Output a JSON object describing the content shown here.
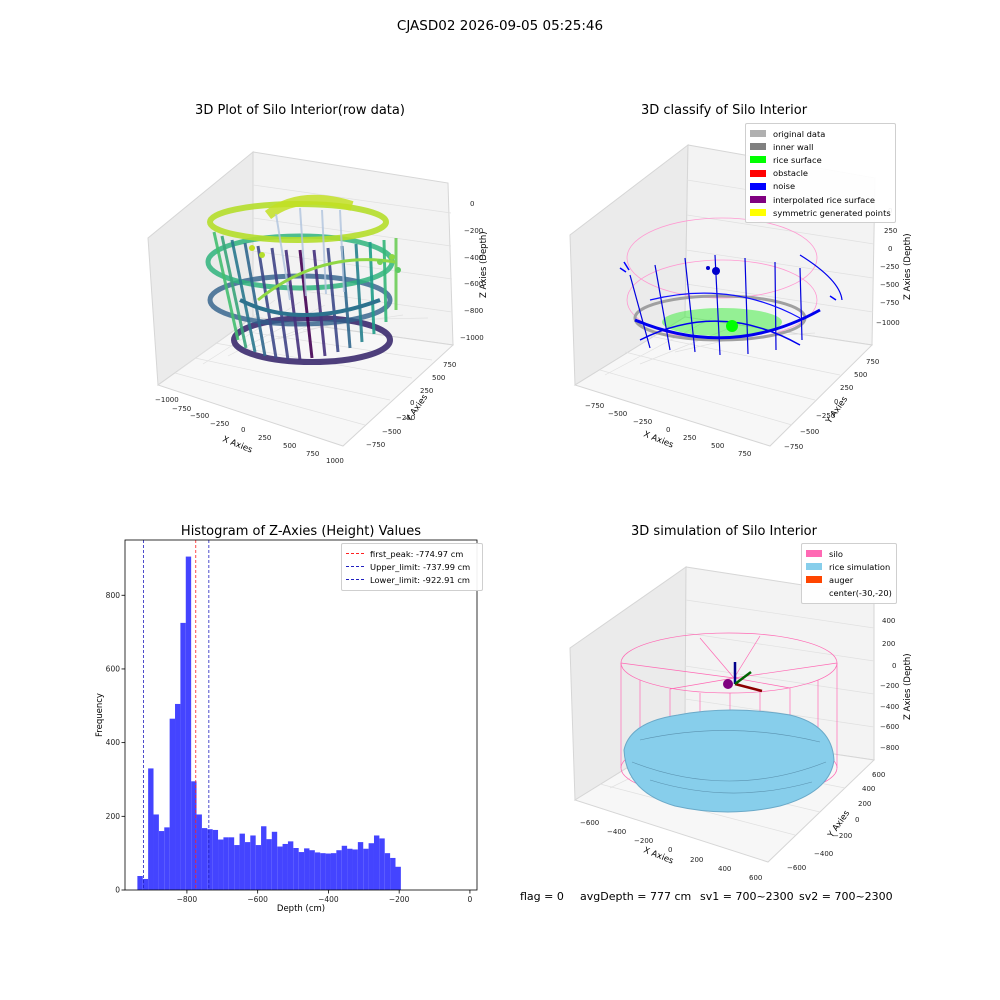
{
  "suptitle": "CJASD02 2026-09-05 05:25:46",
  "colors": {
    "viridis_low": "#440154",
    "viridis_mid": "#21918c",
    "viridis_high": "#fde725",
    "histogram_bar": "#4444ff",
    "first_peak_line": "#ff2020",
    "limit_lines": "#2020c0",
    "silo": "#ff69b4",
    "rice_simulation": "#87ceeb",
    "auger": "#ff4500"
  },
  "raw_plot": {
    "title": "3D Plot of Silo Interior(row data)",
    "xlabel": "X Axies",
    "ylabel": "Y Axies",
    "zlabel": "Z Axies (Depth)",
    "x_ticks": [
      "−1000",
      "−750",
      "−500",
      "−250",
      "0",
      "250",
      "500",
      "750",
      "1000"
    ],
    "y_ticks": [
      "−750",
      "−500",
      "−250",
      "0",
      "250",
      "500",
      "750"
    ],
    "z_ticks": [
      "0",
      "−200",
      "−400",
      "−600",
      "−800",
      "−1000"
    ]
  },
  "classify_plot": {
    "title": "3D classify of Silo Interior",
    "xlabel": "X Axies",
    "ylabel": "Y Axies",
    "zlabel": "Z Axies (Depth)",
    "x_ticks": [
      "−750",
      "−500",
      "−250",
      "0",
      "250",
      "500",
      "750"
    ],
    "y_ticks": [
      "−750",
      "−500",
      "−250",
      "0",
      "250",
      "500",
      "750"
    ],
    "z_ticks": [
      "250",
      "0",
      "−250",
      "−500",
      "−750",
      "−1000"
    ],
    "z_tick_partial": "0",
    "legend": [
      {
        "label": "original data",
        "color": "#b0b0b0"
      },
      {
        "label": "inner wall",
        "color": "#808080"
      },
      {
        "label": "rice surface",
        "color": "#00ff00"
      },
      {
        "label": "obstacle",
        "color": "#ff0000"
      },
      {
        "label": "noise",
        "color": "#0000ff"
      },
      {
        "label": "interpolated rice surface",
        "color": "#800080"
      },
      {
        "label": "symmetric generated points",
        "color": "#ffff00"
      }
    ]
  },
  "histogram": {
    "title": "Histogram of Z-Axies (Height) Values",
    "xlabel": "Depth (cm)",
    "ylabel": "Frequency",
    "x_ticks": [
      "−800",
      "−600",
      "−400",
      "−200",
      "0"
    ],
    "y_ticks": [
      "0",
      "200",
      "400",
      "600",
      "800"
    ],
    "legend": [
      {
        "label": "first_peak: -774.97 cm",
        "color": "#ff2020"
      },
      {
        "label": "Upper_limit: -737.99 cm",
        "color": "#2020c0"
      },
      {
        "label": "Lower_limit: -922.91 cm",
        "color": "#2020c0"
      }
    ]
  },
  "sim_plot": {
    "title": "3D simulation of Silo Interior",
    "xlabel": "X Axies",
    "ylabel": "Y Axies",
    "zlabel": "Z Axies (Depth)",
    "x_ticks": [
      "−600",
      "−400",
      "−200",
      "0",
      "200",
      "400",
      "600"
    ],
    "y_ticks": [
      "−600",
      "−400",
      "−200",
      "0",
      "200",
      "400",
      "600"
    ],
    "z_ticks": [
      "400",
      "200",
      "0",
      "−200",
      "−400",
      "−600",
      "−800"
    ],
    "legend": [
      {
        "label": "silo",
        "color": "#ff69b4"
      },
      {
        "label": "rice simulation",
        "color": "#87ceeb"
      },
      {
        "label": "auger",
        "color": "#ff4500"
      },
      {
        "label": "center(-30,-20)",
        "color": ""
      }
    ]
  },
  "footer": {
    "flag": "flag = 0",
    "avg": "avgDepth = 777 cm",
    "sv1": "sv1 = 700~2300",
    "sv2": "sv2 = 700~2300"
  },
  "chart_data": [
    {
      "type": "scatter",
      "title": "3D Plot of Silo Interior(row data)",
      "xlabel": "X Axies",
      "ylabel": "Y Axies",
      "zlabel": "Z Axies (Depth)",
      "xlim": [
        -1000,
        1000
      ],
      "ylim": [
        -750,
        750
      ],
      "zlim": [
        -1000,
        0
      ],
      "colormap": "viridis"
    },
    {
      "type": "scatter",
      "title": "3D classify of Silo Interior",
      "xlabel": "X Axies",
      "ylabel": "Y Axies",
      "zlabel": "Z Axies (Depth)",
      "xlim": [
        -750,
        750
      ],
      "ylim": [
        -750,
        750
      ],
      "zlim": [
        -1000,
        250
      ],
      "series": [
        {
          "name": "original data"
        },
        {
          "name": "inner wall"
        },
        {
          "name": "rice surface"
        },
        {
          "name": "obstacle"
        },
        {
          "name": "noise"
        },
        {
          "name": "interpolated rice surface"
        },
        {
          "name": "symmetric generated points"
        }
      ],
      "legend": "top-right"
    },
    {
      "type": "bar",
      "title": "Histogram of Z-Axies (Height) Values",
      "xlabel": "Depth (cm)",
      "ylabel": "Frequency",
      "xlim": [
        -975,
        20
      ],
      "ylim": [
        0,
        950
      ],
      "bin_start": -940,
      "bin_width": 15.2,
      "values": [
        38,
        30,
        330,
        205,
        160,
        170,
        465,
        505,
        725,
        905,
        295,
        205,
        168,
        165,
        163,
        137,
        143,
        143,
        122,
        153,
        130,
        148,
        122,
        173,
        138,
        158,
        118,
        125,
        132,
        114,
        103,
        113,
        108,
        102,
        100,
        99,
        100,
        108,
        120,
        112,
        110,
        130,
        112,
        127,
        148,
        140,
        100,
        87,
        63
      ],
      "vlines": [
        {
          "name": "first_peak: -774.97 cm",
          "x": -774.97
        },
        {
          "name": "Upper_limit: -737.99 cm",
          "x": -737.99
        },
        {
          "name": "Lower_limit: -922.91 cm",
          "x": -922.91
        }
      ],
      "legend": "top-right",
      "grid": false
    },
    {
      "type": "area",
      "title": "3D simulation of Silo Interior",
      "xlabel": "X Axies",
      "ylabel": "Y Axies",
      "zlabel": "Z Axies (Depth)",
      "xlim": [
        -600,
        600
      ],
      "ylim": [
        -600,
        600
      ],
      "zlim": [
        -800,
        400
      ],
      "series": [
        {
          "name": "silo"
        },
        {
          "name": "rice simulation"
        },
        {
          "name": "auger"
        }
      ],
      "annotation": "center(-30,-20)",
      "legend": "top-right"
    }
  ]
}
